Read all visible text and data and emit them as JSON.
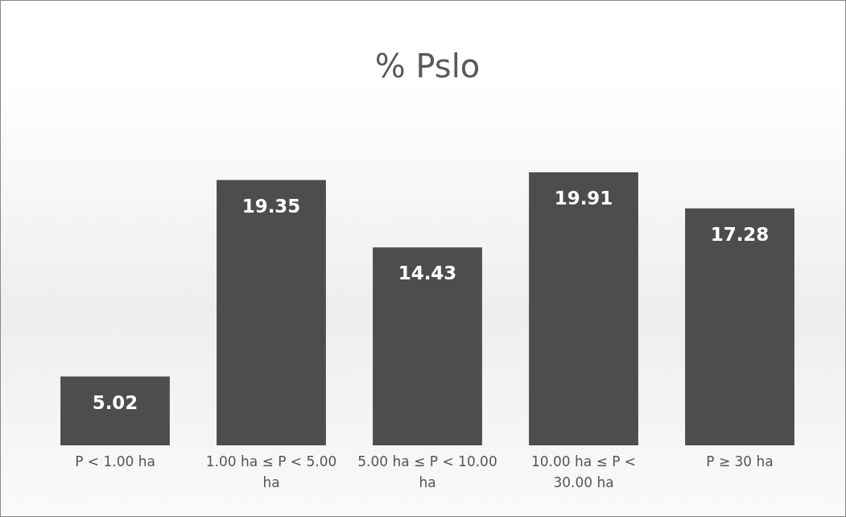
{
  "chart_data": {
    "type": "bar",
    "title": "% Pslo",
    "categories": [
      "P < 1.00 ha",
      "1.00 ha ≤ P < 5.00 ha",
      "5.00 ha ≤ P < 10.00 ha",
      "10.00 ha ≤ P < 30.00 ha",
      "P ≥ 30 ha"
    ],
    "values": [
      5.02,
      19.35,
      14.43,
      19.91,
      17.28
    ],
    "color": "#4d4d4d",
    "data_labels": true
  }
}
